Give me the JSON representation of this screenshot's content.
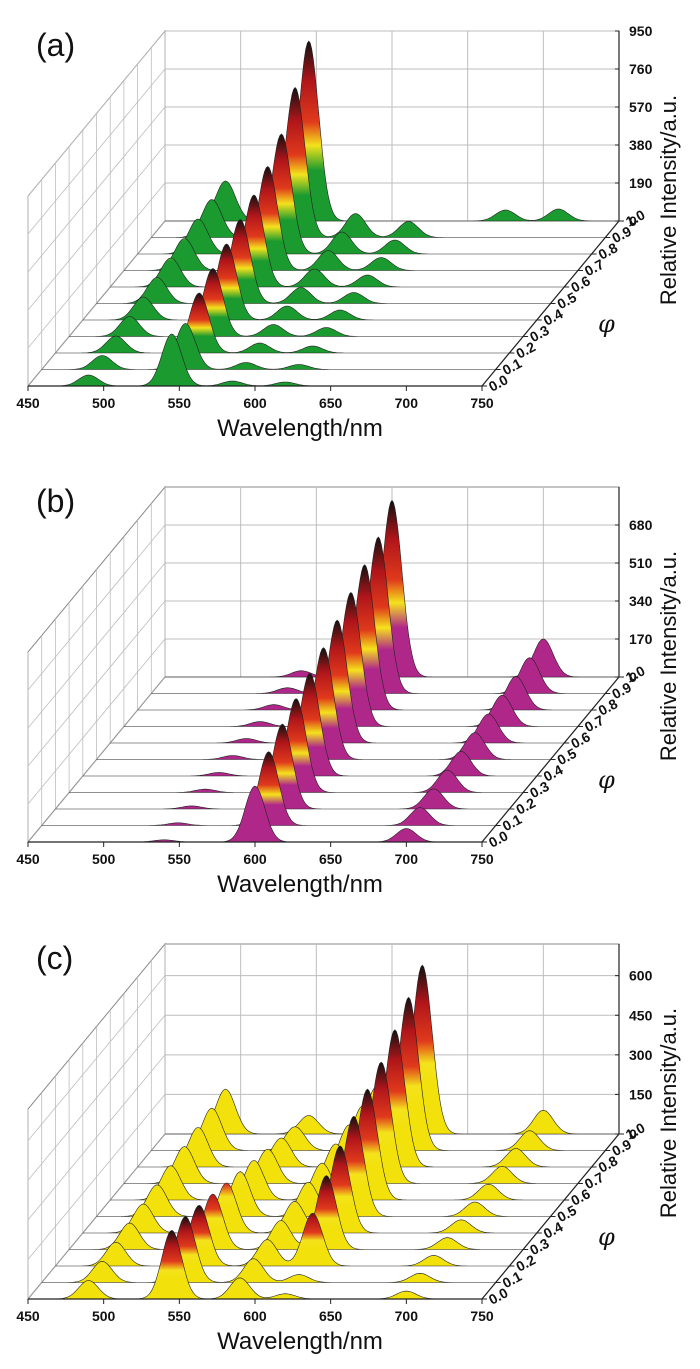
{
  "chart_data": [
    {
      "type": "area",
      "panel_label": "(a)",
      "xlabel": "Wavelength/nm",
      "zlabel": "Relative Intensity/a.u.",
      "ylabel": "φ",
      "x_ticks": [
        "450",
        "500",
        "550",
        "600",
        "650",
        "700",
        "750"
      ],
      "phi_ticks": [
        "0.0",
        "0.1",
        "0.2",
        "0.3",
        "0.4",
        "0.5",
        "0.6",
        "0.7",
        "0.8",
        "0.9",
        "1.0"
      ],
      "z_ticks": [
        "0",
        "190",
        "380",
        "570",
        "760",
        "950"
      ],
      "xlim": [
        450,
        750
      ],
      "zlim": [
        0,
        950
      ],
      "fill_color": "#1a9a2f",
      "phi": [
        0.0,
        0.1,
        0.2,
        0.3,
        0.4,
        0.5,
        0.6,
        0.7,
        0.8,
        0.9,
        1.0
      ],
      "peaks_nm": [
        490,
        545,
        585,
        620,
        675,
        710
      ],
      "series_intensity": [
        [
          55,
          260,
          25,
          20,
          0,
          0
        ],
        [
          70,
          230,
          35,
          25,
          0,
          0
        ],
        [
          85,
          300,
          50,
          35,
          0,
          0
        ],
        [
          100,
          340,
          60,
          45,
          0,
          0
        ],
        [
          115,
          380,
          70,
          50,
          0,
          0
        ],
        [
          130,
          420,
          80,
          55,
          0,
          0
        ],
        [
          145,
          460,
          90,
          60,
          0,
          0
        ],
        [
          160,
          520,
          100,
          65,
          0,
          0
        ],
        [
          175,
          600,
          110,
          70,
          0,
          0
        ],
        [
          190,
          750,
          120,
          80,
          0,
          0
        ],
        [
          200,
          900,
          0,
          0,
          55,
          60
        ]
      ]
    },
    {
      "type": "area",
      "panel_label": "(b)",
      "xlabel": "Wavelength/nm",
      "zlabel": "Relative Intensity/a.u.",
      "ylabel": "φ",
      "x_ticks": [
        "450",
        "500",
        "550",
        "600",
        "650",
        "700",
        "750"
      ],
      "phi_ticks": [
        "0.0",
        "0.1",
        "0.2",
        "0.3",
        "0.4",
        "0.5",
        "0.6",
        "0.7",
        "0.8",
        "0.9",
        "1.0"
      ],
      "z_ticks": [
        "0",
        "170",
        "340",
        "510",
        "680"
      ],
      "xlim": [
        450,
        750
      ],
      "zlim": [
        0,
        850
      ],
      "fill_color": "#b0278a",
      "phi": [
        0.0,
        0.1,
        0.2,
        0.3,
        0.4,
        0.5,
        0.6,
        0.7,
        0.8,
        0.9,
        1.0
      ],
      "peaks_nm": [
        540,
        600,
        700
      ],
      "series_intensity": [
        [
          10,
          250,
          60
        ],
        [
          12,
          330,
          80
        ],
        [
          14,
          380,
          90
        ],
        [
          15,
          420,
          100
        ],
        [
          16,
          460,
          110
        ],
        [
          18,
          500,
          120
        ],
        [
          20,
          550,
          130
        ],
        [
          22,
          600,
          140
        ],
        [
          24,
          650,
          150
        ],
        [
          26,
          700,
          160
        ],
        [
          28,
          790,
          170
        ]
      ]
    },
    {
      "type": "area",
      "panel_label": "(c)",
      "xlabel": "Wavelength/nm",
      "zlabel": "Relative Intensity/a.u.",
      "ylabel": "φ",
      "x_ticks": [
        "450",
        "500",
        "550",
        "600",
        "650",
        "700",
        "750"
      ],
      "phi_ticks": [
        "0.0",
        "0.1",
        "0.2",
        "0.3",
        "0.4",
        "0.5",
        "0.6",
        "0.7",
        "0.8",
        "0.9",
        "1.0"
      ],
      "z_ticks": [
        "0",
        "150",
        "300",
        "450",
        "600"
      ],
      "xlim": [
        450,
        750
      ],
      "zlim": [
        0,
        720
      ],
      "fill_color": "#f2e10a",
      "phi": [
        0.0,
        0.1,
        0.2,
        0.3,
        0.4,
        0.5,
        0.6,
        0.7,
        0.8,
        0.9,
        1.0
      ],
      "peaks_nm": [
        490,
        545,
        590,
        620,
        700
      ],
      "series_intensity": [
        [
          70,
          260,
          80,
          20,
          30
        ],
        [
          80,
          250,
          90,
          30,
          35
        ],
        [
          90,
          230,
          100,
          200,
          40
        ],
        [
          100,
          210,
          110,
          280,
          45
        ],
        [
          110,
          190,
          120,
          330,
          50
        ],
        [
          120,
          170,
          130,
          380,
          55
        ],
        [
          130,
          150,
          140,
          420,
          60
        ],
        [
          140,
          130,
          150,
          460,
          65
        ],
        [
          150,
          110,
          160,
          520,
          70
        ],
        [
          160,
          90,
          170,
          580,
          75
        ],
        [
          170,
          70,
          180,
          640,
          90
        ]
      ]
    }
  ]
}
